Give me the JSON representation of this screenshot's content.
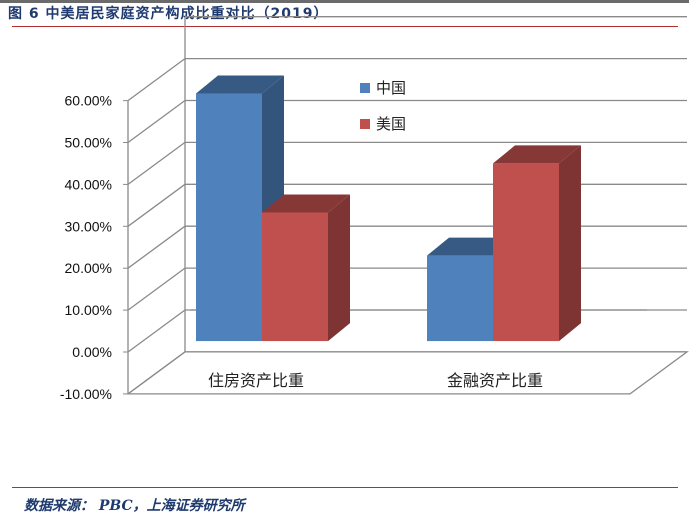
{
  "title": "图 6  中美居民家庭资产构成比重对比（2019）",
  "source": "数据来源：  PBC，上海证券研究所",
  "chart_data": {
    "type": "bar",
    "title": "",
    "categories": [
      "住房资产比重",
      "金融资产比重"
    ],
    "series": [
      {
        "name": "中国",
        "values": [
          59.1,
          20.4
        ],
        "color": "#4f81bd"
      },
      {
        "name": "美国",
        "values": [
          30.7,
          42.4
        ],
        "color": "#c0504d"
      }
    ],
    "ylim": [
      -10,
      60
    ],
    "yticks": [
      "60.00%",
      "50.00%",
      "40.00%",
      "30.00%",
      "20.00%",
      "10.00%",
      "0.00%",
      "-10.00%"
    ],
    "grid": true,
    "legend": "top-center",
    "style": "3d-clustered-column"
  }
}
